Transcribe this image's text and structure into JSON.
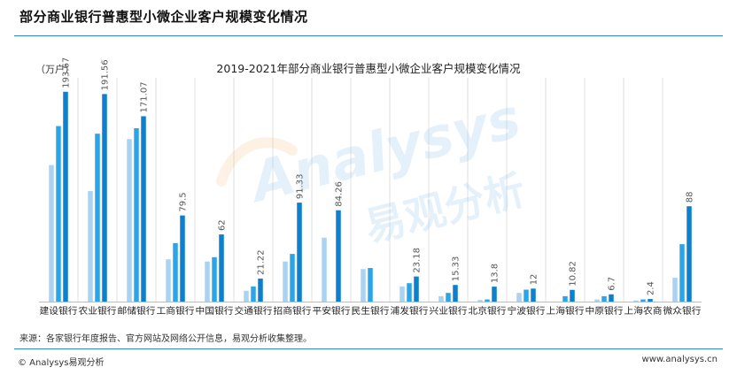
{
  "header": {
    "title": "部分商业银行普惠型小微企业客户规模变化情况"
  },
  "chart_data": {
    "type": "bar",
    "title": "2019-2021年部分商业银行普惠型小微企业客户规模变化情况",
    "unit": "（万户）",
    "categories": [
      "建设银行",
      "农业银行",
      "邮储银行",
      "工商银行",
      "中国银行",
      "交通银行",
      "招商银行",
      "平安银行",
      "民生银行",
      "浦发银行",
      "兴业银行",
      "北京银行",
      "宁波银行",
      "上海银行",
      "中原银行",
      "上海农商",
      "微众银行"
    ],
    "series": [
      {
        "name": "",
        "color": "#a9d3f5",
        "values": [
          126,
          102,
          150,
          39,
          37,
          10,
          37,
          59,
          30,
          14,
          5,
          1.5,
          8,
          0,
          2,
          1,
          22
        ]
      },
      {
        "name": "",
        "color": "#2aa5ec",
        "values": [
          162,
          155,
          160,
          54,
          41,
          14,
          44,
          0,
          31,
          17,
          8,
          2,
          11,
          5,
          5,
          2,
          53
        ]
      },
      {
        "name": "",
        "color": "#0d7fce",
        "values": [
          193.67,
          191.56,
          171.07,
          79.5,
          62,
          21.22,
          91.33,
          84.26,
          0,
          23.18,
          15.33,
          13.8,
          12,
          10.82,
          6.7,
          2.4,
          88
        ]
      }
    ],
    "data_labels": [
      "193.67",
      "191.56",
      "171.07",
      "79.5",
      "62",
      "21.22",
      "91.33",
      "84.26",
      "",
      "23.18",
      "15.33",
      "13.8",
      "12",
      "10.82",
      "6.7",
      "2.4",
      "88"
    ],
    "ylim": [
      0,
      200
    ],
    "grid": "vertical category separators"
  },
  "watermark": {
    "text_latin": "Analysys",
    "text_cn": "易观分析"
  },
  "footer": {
    "source": "来源：各家银行年度报告、官方网站及网络公开信息，易观分析收集整理。",
    "copyright": "© Analysys易观分析",
    "website": "www.analysys.cn"
  }
}
